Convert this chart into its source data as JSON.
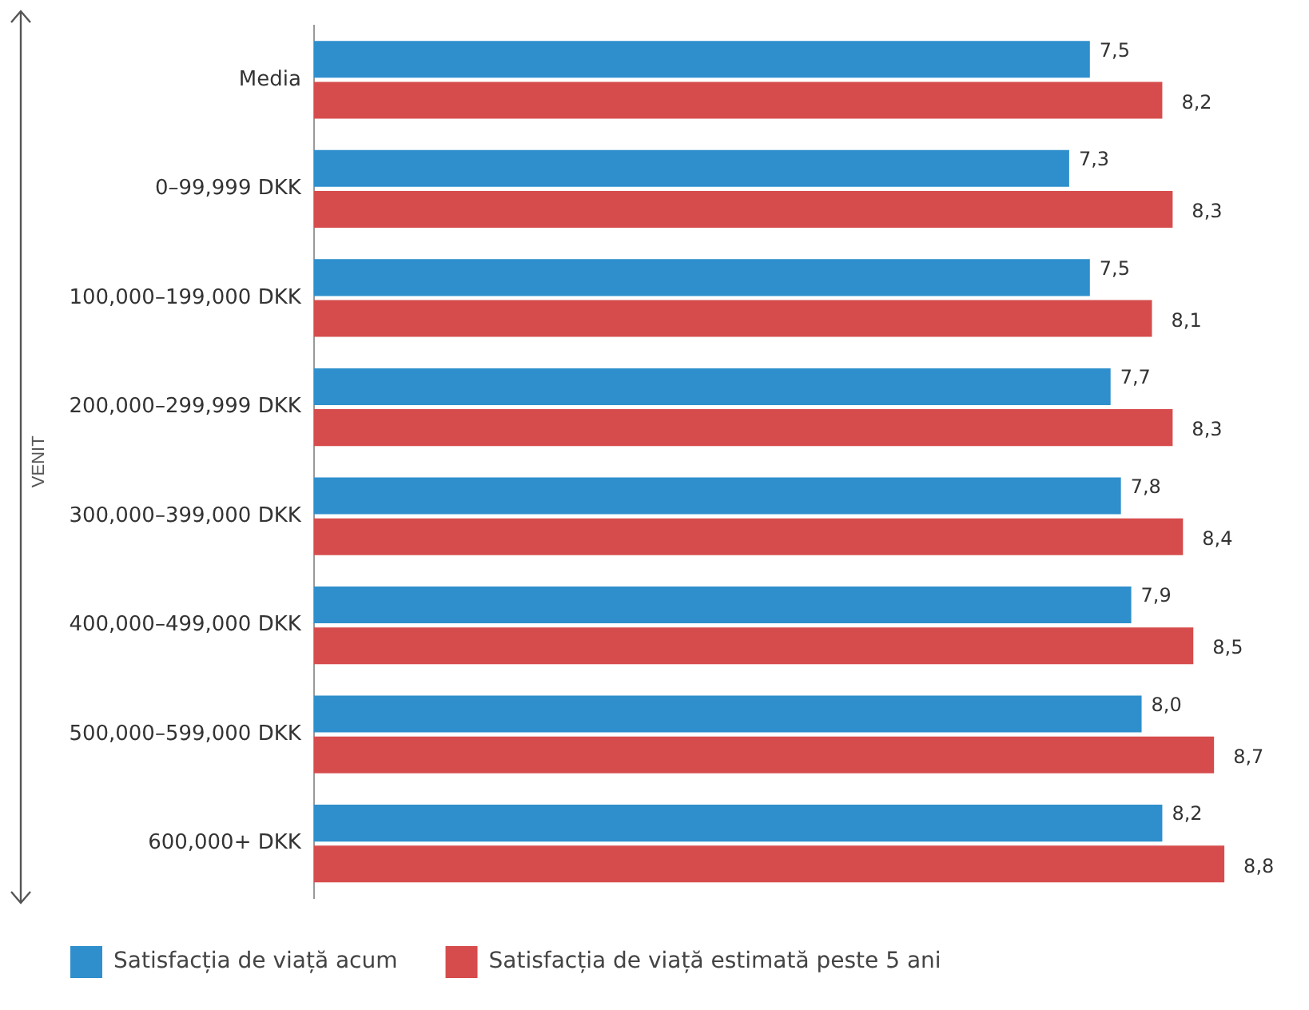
{
  "chart_data": {
    "type": "bar",
    "orientation": "horizontal",
    "ylabel": "VENIT",
    "categories": [
      "Media",
      "0–99,999 DKK",
      "100,000–199,000 DKK",
      "200,000–299,999 DKK",
      "300,000–399,000 DKK",
      "400,000–499,000 DKK",
      "500,000–599,000 DKK",
      "600,000+ DKK"
    ],
    "series": [
      {
        "name": "Satisfacția de viață acum",
        "color": "#2e8fcc",
        "values": [
          7.5,
          7.3,
          7.5,
          7.7,
          7.8,
          7.9,
          8.0,
          8.2
        ],
        "value_labels": [
          "7,5",
          "7,3",
          "7,5",
          "7,7",
          "7,8",
          "7,9",
          "8,0",
          "8,2"
        ]
      },
      {
        "name": "Satisfacția de viață estimată peste 5 ani",
        "color": "#d64c4c",
        "values": [
          8.2,
          8.3,
          8.1,
          8.3,
          8.4,
          8.5,
          8.7,
          8.8
        ],
        "value_labels": [
          "8,2",
          "8,3",
          "8,1",
          "8,3",
          "8,4",
          "8,5",
          "8,7",
          "8,8"
        ]
      }
    ],
    "legend": "bottom",
    "grid": false
  }
}
